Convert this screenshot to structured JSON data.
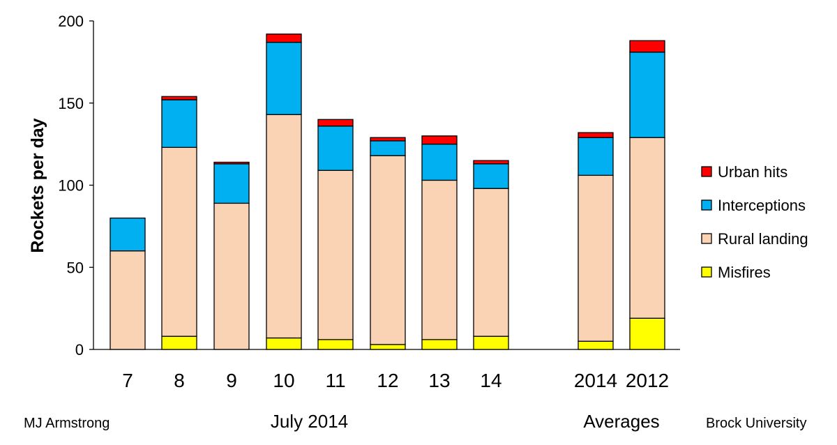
{
  "chart_data": {
    "type": "bar",
    "stacked": true,
    "ylabel": "Rockets per day",
    "ylim": [
      0,
      200
    ],
    "yticks": [
      0,
      50,
      100,
      150,
      200
    ],
    "grid": false,
    "legend_position": "right",
    "categories": [
      "7",
      "8",
      "9",
      "10",
      "11",
      "12",
      "13",
      "14",
      "2014",
      "2012"
    ],
    "series": [
      {
        "name": "Misfires",
        "color": "#ffff00",
        "values": [
          0,
          8,
          0,
          7,
          6,
          3,
          6,
          8,
          5,
          19
        ]
      },
      {
        "name": "Rural landing",
        "color": "#fad3b5",
        "values": [
          60,
          115,
          89,
          136,
          103,
          115,
          97,
          90,
          101,
          110
        ]
      },
      {
        "name": "Interceptions",
        "color": "#00b0f0",
        "values": [
          20,
          29,
          24,
          44,
          27,
          9,
          22,
          15,
          23,
          52
        ]
      },
      {
        "name": "Urban hits",
        "color": "#ff0000",
        "values": [
          0,
          2,
          1,
          5,
          4,
          2,
          5,
          2,
          3,
          7
        ]
      }
    ],
    "legend_order": [
      "Urban hits",
      "Interceptions",
      "Rural landing",
      "Misfires"
    ],
    "group_labels": [
      {
        "label": "July 2014",
        "categories": [
          "7",
          "8",
          "9",
          "10",
          "11",
          "12",
          "13",
          "14"
        ]
      },
      {
        "label": "Averages",
        "categories": [
          "2014",
          "2012"
        ]
      }
    ]
  },
  "footer": {
    "author": "MJ Armstrong",
    "institution": "Brock University"
  }
}
